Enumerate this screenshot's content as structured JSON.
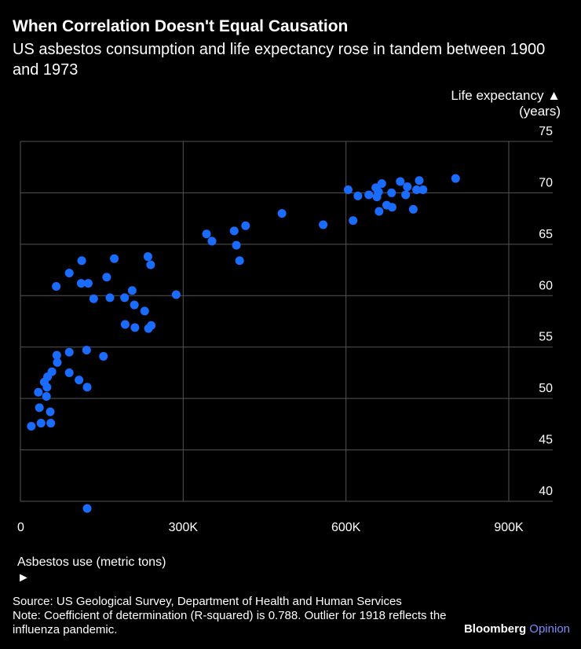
{
  "title": "When Correlation Doesn't Equal Causation",
  "subtitle": "US asbestos consumption and life expectancy rose in tandem between 1900 and 1973",
  "ylabel_line1": "Life expectancy ▲",
  "ylabel_line2": "(years)",
  "xlabel": "Asbestos use (metric tons) ►",
  "source": "Source: US Geological Survey, Department of Health and Human Services",
  "note": "Note: Coefficient of determination (R-squared) is 0.788. Outlier for 1918 reflects the influenza pandemic.",
  "brand_name": "Bloomberg",
  "brand_suffix": "Opinion",
  "colors": {
    "background": "#000000",
    "point": "#1a6cff",
    "grid": "#555555",
    "text": "#ffffff"
  },
  "chart_data": {
    "type": "scatter",
    "title": "When Correlation Doesn't Equal Causation",
    "xlabel": "Asbestos use (metric tons)",
    "ylabel": "Life expectancy (years)",
    "xlim": [
      0,
      980000
    ],
    "ylim": [
      38.5,
      75
    ],
    "x_ticks": [
      0,
      300000,
      600000,
      900000
    ],
    "x_tick_labels": [
      "0",
      "300K",
      "600K",
      "900K"
    ],
    "y_ticks": [
      40,
      45,
      50,
      55,
      60,
      65,
      70,
      75
    ],
    "y_tick_labels": [
      "40",
      "45",
      "50",
      "55",
      "60",
      "65",
      "70",
      "75"
    ],
    "points": [
      {
        "x": 20000,
        "y": 47.3
      },
      {
        "x": 38000,
        "y": 47.6
      },
      {
        "x": 56000,
        "y": 47.6
      },
      {
        "x": 55000,
        "y": 48.7
      },
      {
        "x": 35000,
        "y": 49.1
      },
      {
        "x": 48000,
        "y": 50.2
      },
      {
        "x": 49000,
        "y": 51.1
      },
      {
        "x": 33000,
        "y": 50.6
      },
      {
        "x": 44000,
        "y": 51.6
      },
      {
        "x": 50000,
        "y": 52.1
      },
      {
        "x": 58000,
        "y": 52.6
      },
      {
        "x": 68000,
        "y": 53.5
      },
      {
        "x": 67000,
        "y": 54.2
      },
      {
        "x": 90000,
        "y": 54.5
      },
      {
        "x": 90000,
        "y": 52.5
      },
      {
        "x": 108000,
        "y": 51.8
      },
      {
        "x": 123000,
        "y": 51.1
      },
      {
        "x": 122000,
        "y": 54.7
      },
      {
        "x": 153000,
        "y": 54.1
      },
      {
        "x": 123000,
        "y": 39.3
      },
      {
        "x": 66000,
        "y": 60.9
      },
      {
        "x": 90000,
        "y": 62.2
      },
      {
        "x": 113000,
        "y": 63.4
      },
      {
        "x": 112000,
        "y": 61.2
      },
      {
        "x": 125000,
        "y": 61.2
      },
      {
        "x": 135000,
        "y": 59.7
      },
      {
        "x": 159000,
        "y": 61.8
      },
      {
        "x": 165000,
        "y": 59.8
      },
      {
        "x": 173000,
        "y": 63.6
      },
      {
        "x": 192000,
        "y": 59.8
      },
      {
        "x": 193000,
        "y": 57.2
      },
      {
        "x": 206000,
        "y": 60.5
      },
      {
        "x": 210000,
        "y": 59.1
      },
      {
        "x": 211000,
        "y": 56.9
      },
      {
        "x": 229000,
        "y": 58.5
      },
      {
        "x": 235000,
        "y": 63.8
      },
      {
        "x": 240000,
        "y": 63.0
      },
      {
        "x": 236000,
        "y": 56.8
      },
      {
        "x": 241000,
        "y": 57.1
      },
      {
        "x": 287000,
        "y": 60.1
      },
      {
        "x": 343000,
        "y": 66.0
      },
      {
        "x": 353000,
        "y": 65.3
      },
      {
        "x": 394000,
        "y": 66.3
      },
      {
        "x": 398000,
        "y": 64.9
      },
      {
        "x": 404000,
        "y": 63.4
      },
      {
        "x": 415000,
        "y": 66.8
      },
      {
        "x": 482000,
        "y": 68.0
      },
      {
        "x": 558000,
        "y": 66.9
      },
      {
        "x": 604000,
        "y": 70.3
      },
      {
        "x": 613000,
        "y": 67.3
      },
      {
        "x": 622000,
        "y": 69.7
      },
      {
        "x": 642000,
        "y": 69.8
      },
      {
        "x": 655000,
        "y": 70.5
      },
      {
        "x": 657000,
        "y": 69.6
      },
      {
        "x": 660000,
        "y": 70.1
      },
      {
        "x": 661000,
        "y": 68.2
      },
      {
        "x": 666000,
        "y": 70.9
      },
      {
        "x": 675000,
        "y": 68.8
      },
      {
        "x": 684000,
        "y": 70.0
      },
      {
        "x": 685000,
        "y": 68.6
      },
      {
        "x": 700000,
        "y": 71.1
      },
      {
        "x": 710000,
        "y": 69.8
      },
      {
        "x": 713000,
        "y": 70.6
      },
      {
        "x": 724000,
        "y": 68.4
      },
      {
        "x": 730000,
        "y": 70.3
      },
      {
        "x": 735000,
        "y": 71.2
      },
      {
        "x": 742000,
        "y": 70.3
      },
      {
        "x": 802000,
        "y": 71.4
      }
    ]
  }
}
